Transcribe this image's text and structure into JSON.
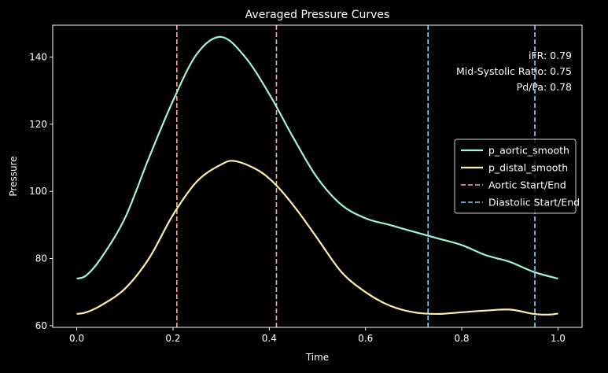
{
  "chart_data": {
    "type": "line",
    "title": "Averaged Pressure Curves",
    "xlabel": "Time",
    "ylabel": "Pressure",
    "xlim": [
      -0.05,
      1.05
    ],
    "ylim": [
      59.5,
      149.5
    ],
    "xticks": [
      0.0,
      0.2,
      0.4,
      0.6,
      0.8,
      1.0
    ],
    "xtick_labels": [
      "0.0",
      "0.2",
      "0.4",
      "0.6",
      "0.8",
      "1.0"
    ],
    "yticks": [
      60,
      80,
      100,
      120,
      140
    ],
    "ytick_labels": [
      "60",
      "80",
      "100",
      "120",
      "140"
    ],
    "grid": false,
    "legend_position": "center-right",
    "series": [
      {
        "name": "p_aortic_smooth",
        "color": "#9ff5d5",
        "style": "solid",
        "x": [
          0.0,
          0.02,
          0.05,
          0.1,
          0.15,
          0.2,
          0.25,
          0.3,
          0.35,
          0.4,
          0.45,
          0.5,
          0.55,
          0.6,
          0.65,
          0.7,
          0.75,
          0.8,
          0.85,
          0.9,
          0.95,
          1.0
        ],
        "values": [
          74,
          75,
          80,
          92,
          110,
          127,
          141,
          146,
          140,
          129,
          116,
          104,
          96,
          92,
          90,
          88,
          86,
          84,
          81,
          79,
          76,
          74
        ]
      },
      {
        "name": "p_distal_smooth",
        "color": "#fff0a8",
        "style": "solid",
        "x": [
          0.0,
          0.02,
          0.05,
          0.1,
          0.15,
          0.2,
          0.25,
          0.3,
          0.33,
          0.38,
          0.42,
          0.46,
          0.5,
          0.55,
          0.6,
          0.65,
          0.7,
          0.75,
          0.8,
          0.85,
          0.9,
          0.95,
          0.98,
          1.0
        ],
        "values": [
          63.5,
          64,
          66,
          71,
          80,
          93,
          103,
          108,
          109,
          106,
          101,
          94,
          86,
          76,
          70,
          66,
          64,
          63.5,
          64,
          64.5,
          64.8,
          63.5,
          63.3,
          63.6
        ]
      }
    ],
    "vlines": [
      {
        "name": "Aortic Start/End",
        "color": "#ffa8a8",
        "style": "dashed",
        "x": [
          0.208,
          0.415
        ]
      },
      {
        "name": "Diastolic Start/End",
        "color": "#88d8ff",
        "style": "dashed",
        "x": [
          0.73,
          0.952
        ]
      }
    ],
    "annotations": [
      "iFR: 0.79",
      "Mid-Systolic Ratio: 0.75",
      "Pd/Pa: 0.78"
    ]
  }
}
